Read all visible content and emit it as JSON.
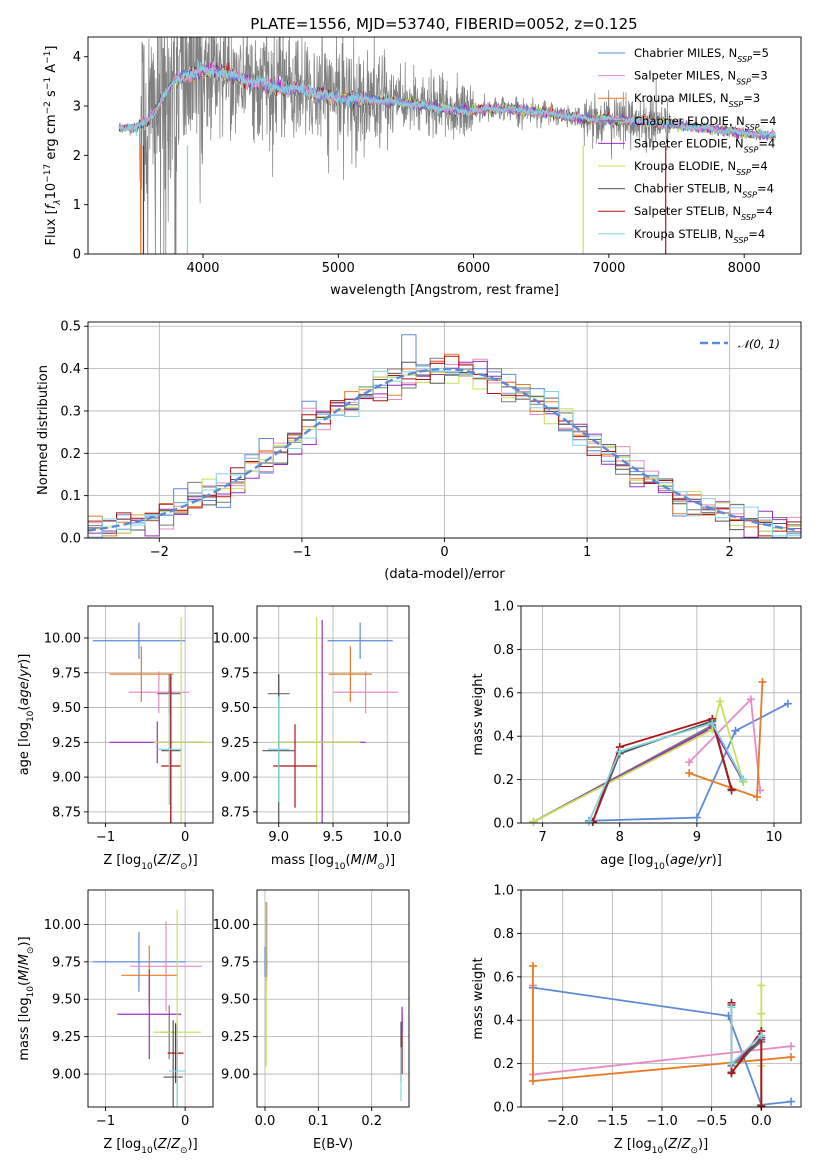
{
  "title": "PLATE=1556, MJD=53740, FIBERID=0052, z=0.125",
  "colors": {
    "Chabrier MILES": "#5b8bd8",
    "Salpeter MILES": "#e88bc4",
    "Kroupa MILES": "#e87b27",
    "Chabrier ELODIE": "#7a7a7a",
    "Salpeter ELODIE": "#9b2fbf",
    "Kroupa ELODIE": "#c7e15a",
    "Chabrier STELIB": "#555555",
    "Salpeter STELIB": "#b01515",
    "Kroupa STELIB": "#82d4e0",
    "data": "#808080",
    "gauss": "#5b8bd8"
  },
  "legend": [
    {
      "model": "Chabrier MILES",
      "label": "Chabrier MILES, N",
      "sub": "SSP",
      "suffix": "=5"
    },
    {
      "model": "Salpeter MILES",
      "label": "Salpeter MILES, N",
      "sub": "SSP",
      "suffix": "=3"
    },
    {
      "model": "Kroupa MILES",
      "label": "Kroupa MILES, N",
      "sub": "SSP",
      "suffix": "=3"
    },
    {
      "model": "Chabrier ELODIE",
      "label": "Chabrier ELODIE, N",
      "sub": "SSP",
      "suffix": "=4"
    },
    {
      "model": "Salpeter ELODIE",
      "label": "Salpeter ELODIE, N",
      "sub": "SSP",
      "suffix": "=4"
    },
    {
      "model": "Kroupa ELODIE",
      "label": "Kroupa ELODIE, N",
      "sub": "SSP",
      "suffix": "=4"
    },
    {
      "model": "Chabrier STELIB",
      "label": "Chabrier STELIB, N",
      "sub": "SSP",
      "suffix": "=4"
    },
    {
      "model": "Salpeter STELIB",
      "label": "Salpeter STELIB, N",
      "sub": "SSP",
      "suffix": "=4"
    },
    {
      "model": "Kroupa STELIB",
      "label": "Kroupa STELIB, N",
      "sub": "SSP",
      "suffix": "=4"
    }
  ],
  "chart_data": [
    {
      "id": "spectrum",
      "type": "line",
      "xlabel": "wavelength [Angstrom, rest frame]",
      "ylabel": "Flux [f_λ 10^-17 erg cm^-2 s^-1 A^-1]",
      "ylabel_parts": [
        "Flux [",
        "f",
        "λ",
        "10",
        "−17",
        " erg cm",
        "−2",
        " s",
        "−1",
        " A",
        "−1",
        "]"
      ],
      "xlim": [
        3150,
        8420
      ],
      "ylim": [
        0,
        4.4
      ],
      "xticks": [
        4000,
        5000,
        6000,
        7000,
        8000
      ],
      "yticks": [
        0,
        1,
        2,
        3,
        4
      ],
      "grid": false,
      "legend_position": "upper right",
      "data_range": [
        3380,
        8230
      ],
      "continuum_knots": {
        "x": [
          3380,
          3500,
          3600,
          3700,
          3800,
          3900,
          4000,
          4100,
          4300,
          4500,
          4700,
          5000,
          5300,
          5600,
          5900,
          6200,
          6500,
          6800,
          7100,
          7400,
          7700,
          8000,
          8230
        ],
        "y": [
          2.58,
          2.55,
          2.72,
          3.15,
          3.55,
          3.65,
          3.72,
          3.7,
          3.55,
          3.4,
          3.35,
          3.15,
          3.12,
          3.02,
          2.9,
          2.95,
          2.88,
          2.75,
          2.72,
          2.65,
          2.55,
          2.45,
          2.4
        ]
      }
    },
    {
      "id": "residuals",
      "type": "histogram",
      "xlabel": "(data-model)/error",
      "ylabel": "Normed distribution",
      "xlim": [
        -2.5,
        2.5
      ],
      "ylim": [
        0,
        0.51
      ],
      "xticks": [
        -2,
        -1,
        0,
        1,
        2
      ],
      "yticks": [
        0,
        0.1,
        0.2,
        0.3,
        0.4,
        0.5
      ],
      "grid": true,
      "bin_width": 0.1,
      "bin_start": -2.5,
      "legend": "𝒩(0, 1)",
      "legend_position": "upper right"
    },
    {
      "id": "age_vs_Z",
      "type": "errorbar",
      "xlabel": "Z [log10(Z/Z⊙)]",
      "ylabel": "age  [log10(age/yr)]",
      "xlim": [
        -1.22,
        0.35
      ],
      "ylim": [
        8.67,
        10.23
      ],
      "xticks": [
        -1,
        0
      ],
      "yticks": [
        8.75,
        9.0,
        9.25,
        9.5,
        9.75,
        10.0
      ],
      "grid": true,
      "points": [
        {
          "model": "Chabrier MILES",
          "x": -0.58,
          "xerr": 0.58,
          "y": 9.98,
          "yerr": 0.13
        },
        {
          "model": "Salpeter MILES",
          "x": -0.33,
          "xerr": 0.38,
          "y": 9.61,
          "yerr": 0.15
        },
        {
          "model": "Kroupa MILES",
          "x": -0.55,
          "xerr": 0.4,
          "y": 9.74,
          "yerr": 0.2
        },
        {
          "model": "Chabrier ELODIE",
          "x": -0.2,
          "xerr": 0.15,
          "y": 9.6,
          "yerr": 0.14
        },
        {
          "model": "Salpeter ELODIE",
          "x": -0.35,
          "xerr": 0.6,
          "y": 9.25,
          "yerr": 0.15
        },
        {
          "model": "Kroupa ELODIE",
          "x": -0.05,
          "xerr": 0.35,
          "y": 9.25,
          "yerr": 0.9
        },
        {
          "model": "Chabrier STELIB",
          "x": -0.18,
          "xerr": 0.12,
          "y": 9.19,
          "yerr": 0.55
        },
        {
          "model": "Salpeter STELIB",
          "x": -0.18,
          "xerr": 0.12,
          "y": 9.08,
          "yerr": 0.65
        },
        {
          "model": "Kroupa STELIB",
          "x": -0.2,
          "xerr": 0.15,
          "y": 9.2,
          "yerr": 0.4
        }
      ]
    },
    {
      "id": "age_vs_mass",
      "type": "errorbar",
      "xlabel": "mass [log10(M/M⊙)]",
      "ylabel": "",
      "xlim": [
        8.8,
        10.2
      ],
      "ylim": [
        8.67,
        10.23
      ],
      "xticks": [
        9.0,
        9.5,
        10.0
      ],
      "yticks": [
        8.75,
        9.0,
        9.25,
        9.5,
        9.75,
        10.0
      ],
      "grid": true,
      "points": [
        {
          "model": "Chabrier MILES",
          "x": 9.75,
          "xerr": 0.3,
          "y": 9.98,
          "yerr": 0.13
        },
        {
          "model": "Salpeter MILES",
          "x": 9.8,
          "xerr": 0.3,
          "y": 9.61,
          "yerr": 0.15
        },
        {
          "model": "Kroupa MILES",
          "x": 9.66,
          "xerr": 0.2,
          "y": 9.74,
          "yerr": 0.2
        },
        {
          "model": "Chabrier ELODIE",
          "x": 9.0,
          "xerr": 0.1,
          "y": 9.6,
          "yerr": 0.14
        },
        {
          "model": "Salpeter ELODIE",
          "x": 9.4,
          "xerr": 0.4,
          "y": 9.25,
          "yerr": 0.88
        },
        {
          "model": "Kroupa ELODIE",
          "x": 9.35,
          "xerr": 0.4,
          "y": 9.25,
          "yerr": 0.9
        },
        {
          "model": "Chabrier STELIB",
          "x": 9.0,
          "xerr": 0.15,
          "y": 9.19,
          "yerr": 0.55
        },
        {
          "model": "Salpeter STELIB",
          "x": 9.15,
          "xerr": 0.2,
          "y": 9.08,
          "yerr": 0.3
        },
        {
          "model": "Kroupa STELIB",
          "x": 9.0,
          "xerr": 0.1,
          "y": 9.2,
          "yerr": 0.38
        }
      ]
    },
    {
      "id": "mass_weight_vs_age",
      "type": "line",
      "xlabel": "age  [log10(age/yr)]",
      "ylabel": "mass weight",
      "xlim": [
        6.72,
        10.35
      ],
      "ylim": [
        0,
        1.0
      ],
      "xticks": [
        7,
        8,
        9,
        10
      ],
      "yticks": [
        0,
        0.2,
        0.4,
        0.6,
        0.8,
        1.0
      ],
      "grid": true,
      "series": [
        {
          "model": "Chabrier MILES",
          "x": [
            7.6,
            9.0,
            9.5,
            10.18
          ],
          "y": [
            0.01,
            0.025,
            0.425,
            0.55
          ]
        },
        {
          "model": "Salpeter MILES",
          "x": [
            8.9,
            9.7,
            9.82
          ],
          "y": [
            0.28,
            0.57,
            0.15
          ]
        },
        {
          "model": "Kroupa MILES",
          "x": [
            8.9,
            9.78,
            9.85
          ],
          "y": [
            0.23,
            0.12,
            0.65
          ]
        },
        {
          "model": "Chabrier ELODIE",
          "x": [
            6.88,
            9.2,
            9.6
          ],
          "y": [
            0.005,
            0.45,
            0.19
          ]
        },
        {
          "model": "Salpeter ELODIE",
          "x": [
            6.88,
            9.2,
            9.6
          ],
          "y": [
            0.005,
            0.44,
            0.2
          ]
        },
        {
          "model": "Kroupa ELODIE",
          "x": [
            6.88,
            9.2,
            9.3,
            9.6
          ],
          "y": [
            0.005,
            0.43,
            0.56,
            0.19
          ]
        },
        {
          "model": "Chabrier STELIB",
          "x": [
            7.65,
            8.0,
            9.2,
            9.45
          ],
          "y": [
            0.005,
            0.32,
            0.47,
            0.15
          ]
        },
        {
          "model": "Salpeter STELIB",
          "x": [
            7.65,
            8.0,
            9.2,
            9.45
          ],
          "y": [
            0.005,
            0.35,
            0.48,
            0.155
          ]
        },
        {
          "model": "Kroupa STELIB",
          "x": [
            7.6,
            8.0,
            9.2,
            9.6
          ],
          "y": [
            0.005,
            0.33,
            0.46,
            0.2
          ]
        }
      ]
    },
    {
      "id": "mass_vs_Z",
      "type": "errorbar",
      "xlabel": "Z [log10(Z/Z⊙)]",
      "ylabel": "mass [log10(M/M⊙)]",
      "xlim": [
        -1.22,
        0.35
      ],
      "ylim": [
        8.78,
        10.23
      ],
      "xticks": [
        -1,
        0
      ],
      "yticks": [
        9.0,
        9.25,
        9.5,
        9.75,
        10.0
      ],
      "grid": true,
      "points": [
        {
          "model": "Chabrier MILES",
          "x": -0.58,
          "xerr": 0.58,
          "y": 9.75,
          "yerr": 0.2
        },
        {
          "model": "Salpeter MILES",
          "x": -0.24,
          "xerr": 0.45,
          "y": 9.72,
          "yerr": 0.3
        },
        {
          "model": "Kroupa MILES",
          "x": -0.45,
          "xerr": 0.35,
          "y": 9.66,
          "yerr": 0.2
        },
        {
          "model": "Chabrier ELODIE",
          "x": -0.2,
          "xerr": 0.1,
          "y": 9.28,
          "yerr": 0.18
        },
        {
          "model": "Salpeter ELODIE",
          "x": -0.45,
          "xerr": 0.4,
          "y": 9.4,
          "yerr": 0.3
        },
        {
          "model": "Kroupa ELODIE",
          "x": -0.1,
          "xerr": 0.3,
          "y": 9.28,
          "yerr": 0.82
        },
        {
          "model": "Chabrier STELIB",
          "x": -0.15,
          "xerr": 0.12,
          "y": 8.98,
          "yerr": 0.38
        },
        {
          "model": "Salpeter STELIB",
          "x": -0.12,
          "xerr": 0.1,
          "y": 9.14,
          "yerr": 0.2
        },
        {
          "model": "Kroupa STELIB",
          "x": -0.1,
          "xerr": 0.1,
          "y": 9.02,
          "yerr": 0.3
        }
      ]
    },
    {
      "id": "mass_vs_EBV",
      "type": "errorbar",
      "xlabel": "E(B-V)",
      "ylabel": "",
      "xlim": [
        -0.015,
        0.27
      ],
      "ylim": [
        8.78,
        10.23
      ],
      "xticks": [
        0.0,
        0.1,
        0.2
      ],
      "yticks": [
        9.0,
        9.25,
        9.5,
        9.75,
        10.0
      ],
      "grid": true,
      "points": [
        {
          "model": "Chabrier MILES",
          "x": 0.0,
          "xerr": 0.0,
          "y": 9.75,
          "yerr": 0.1
        },
        {
          "model": "Salpeter MILES",
          "x": 0.003,
          "xerr": 0.0,
          "y": 9.72,
          "yerr": 0.1
        },
        {
          "model": "Kroupa MILES",
          "x": 0.002,
          "xerr": 0.0,
          "y": 9.66,
          "yerr": 0.1
        },
        {
          "model": "Salpeter ELODIE",
          "x": 0.003,
          "xerr": 0.0,
          "y": 9.9,
          "yerr": 0.25
        },
        {
          "model": "Kroupa ELODIE",
          "x": 0.002,
          "xerr": 0.0,
          "y": 9.6,
          "yerr": 0.55
        },
        {
          "model": "Chabrier STELIB",
          "x": 0.255,
          "xerr": 0.0,
          "y": 9.15,
          "yerr": 0.2
        },
        {
          "model": "Salpeter STELIB",
          "x": 0.257,
          "xerr": 0.0,
          "y": 9.2,
          "yerr": 0.2
        },
        {
          "model": "Kroupa STELIB",
          "x": 0.255,
          "xerr": 0.0,
          "y": 9.0,
          "yerr": 0.18
        },
        {
          "model": "Salpeter ELODIE",
          "x": 0.257,
          "xerr": 0.0,
          "y": 9.35,
          "yerr": 0.1
        }
      ]
    },
    {
      "id": "mass_weight_vs_Z",
      "type": "line",
      "xlabel": "Z [log10(Z/Z⊙)]",
      "ylabel": "mass weight",
      "xlim": [
        -2.42,
        0.4
      ],
      "ylim": [
        0,
        1.0
      ],
      "xticks": [
        -2.0,
        -1.5,
        -1.0,
        -0.5,
        0.0
      ],
      "yticks": [
        0,
        0.2,
        0.4,
        0.6,
        0.8,
        1.0
      ],
      "grid": true,
      "series": [
        {
          "model": "Chabrier MILES",
          "x": [
            -2.3,
            -0.33,
            0.0,
            0.3
          ],
          "y": [
            0.55,
            0.42,
            0.01,
            0.025
          ]
        },
        {
          "model": "Salpeter MILES",
          "x": [
            -2.3,
            -2.3,
            0.3
          ],
          "y": [
            0.56,
            0.15,
            0.28
          ]
        },
        {
          "model": "Kroupa MILES",
          "x": [
            -2.3,
            -2.3,
            0.3
          ],
          "y": [
            0.65,
            0.12,
            0.23
          ]
        },
        {
          "model": "Chabrier ELODIE",
          "x": [
            -0.3,
            0.0,
            0.0
          ],
          "y": [
            0.19,
            0.3,
            0.005
          ]
        },
        {
          "model": "Salpeter ELODIE",
          "x": [
            -0.3,
            0.0,
            0.0
          ],
          "y": [
            0.2,
            0.31,
            0.005
          ]
        },
        {
          "model": "Kroupa ELODIE",
          "x": [
            0.0,
            0.0,
            0.0,
            0.0
          ],
          "y": [
            0.56,
            0.43,
            0.19,
            0.005
          ]
        },
        {
          "model": "Chabrier STELIB",
          "x": [
            -0.3,
            -0.3,
            0.0
          ],
          "y": [
            0.47,
            0.16,
            0.32
          ]
        },
        {
          "model": "Salpeter STELIB",
          "x": [
            -0.3,
            -0.3,
            0.0,
            0.0
          ],
          "y": [
            0.48,
            0.155,
            0.35,
            0.005
          ]
        },
        {
          "model": "Kroupa STELIB",
          "x": [
            -0.3,
            -0.3,
            0.0
          ],
          "y": [
            0.46,
            0.2,
            0.33
          ]
        }
      ]
    }
  ]
}
